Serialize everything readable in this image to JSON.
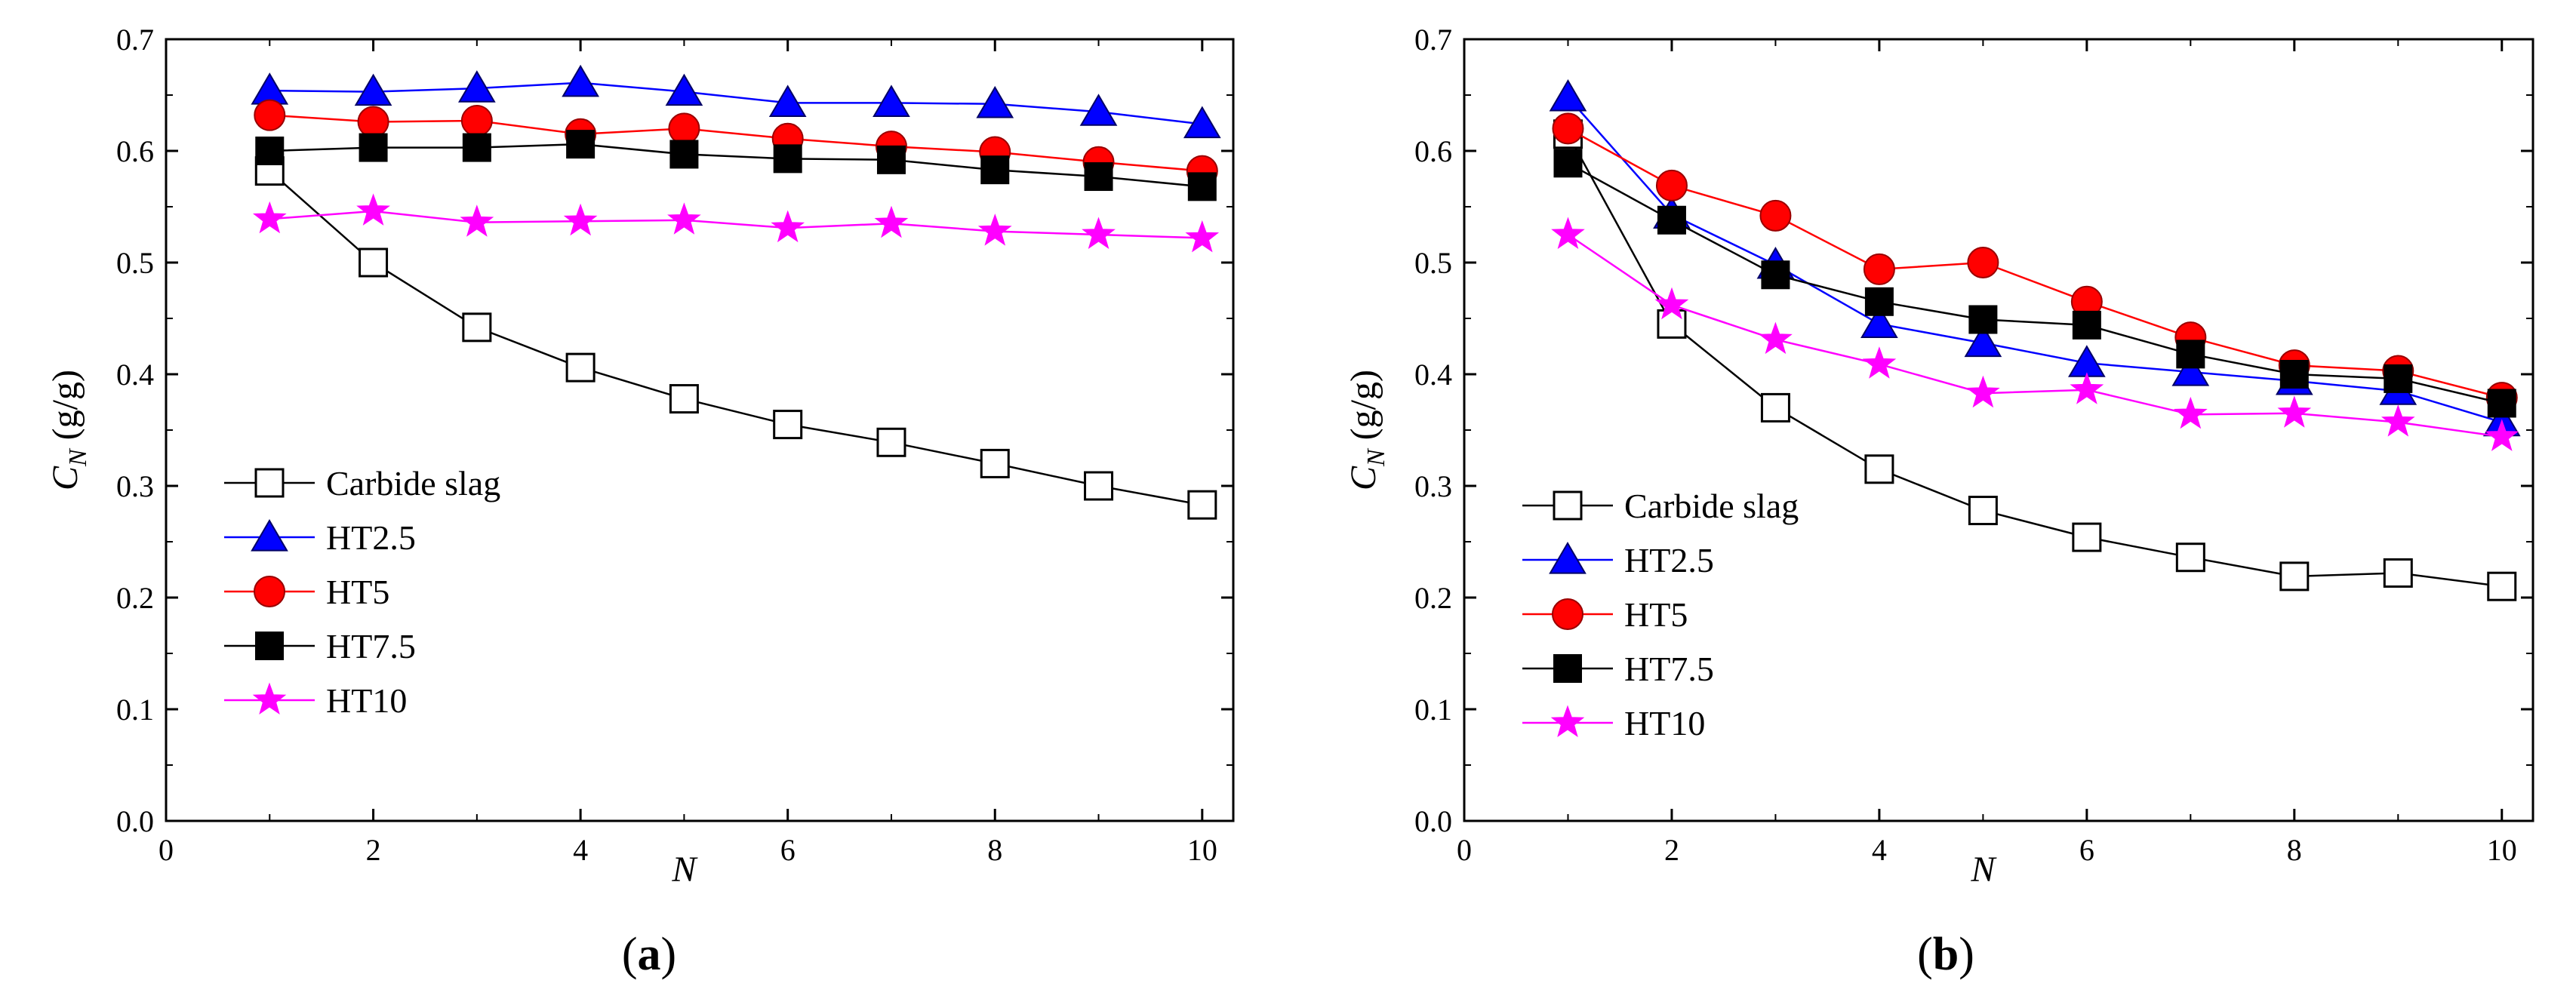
{
  "chart_data": [
    {
      "type": "line",
      "panel_label_open": "(",
      "panel_label_letter": "a",
      "panel_label_close": ")",
      "xlabel": "N",
      "ylabel_main": "C",
      "ylabel_sub": "N",
      "ylabel_unit": " (g/g)",
      "xlim": [
        0,
        10.3
      ],
      "ylim": [
        0,
        0.7
      ],
      "x_ticks": [
        0,
        2,
        4,
        6,
        8,
        10
      ],
      "x_tick_labels": [
        "0",
        "2",
        "4",
        "6",
        "8",
        "10"
      ],
      "y_ticks": [
        0.0,
        0.1,
        0.2,
        0.3,
        0.4,
        0.5,
        0.6,
        0.7
      ],
      "y_tick_labels": [
        "0.0",
        "0.1",
        "0.2",
        "0.3",
        "0.4",
        "0.5",
        "0.6",
        "0.7"
      ],
      "legend_position": "lower-left",
      "x": [
        1,
        2,
        3,
        4,
        5,
        6,
        7,
        8,
        9,
        10
      ],
      "series": [
        {
          "name": "Carbide slag",
          "marker": "open-square",
          "color": "#000000",
          "values": [
            0.582,
            0.5,
            0.442,
            0.406,
            0.378,
            0.355,
            0.339,
            0.32,
            0.3,
            0.283
          ]
        },
        {
          "name": "HT2.5",
          "marker": "triangle",
          "color": "#0000FF",
          "values": [
            0.654,
            0.653,
            0.656,
            0.661,
            0.653,
            0.643,
            0.643,
            0.642,
            0.635,
            0.624
          ]
        },
        {
          "name": "HT5",
          "marker": "circle",
          "color": "#FF0000",
          "values": [
            0.632,
            0.626,
            0.627,
            0.615,
            0.62,
            0.611,
            0.604,
            0.599,
            0.59,
            0.582
          ]
        },
        {
          "name": "HT7.5",
          "marker": "filled-square",
          "color": "#000000",
          "values": [
            0.6,
            0.603,
            0.603,
            0.606,
            0.597,
            0.593,
            0.592,
            0.583,
            0.577,
            0.568
          ]
        },
        {
          "name": "HT10",
          "marker": "star",
          "color": "#FF00FF",
          "values": [
            0.539,
            0.546,
            0.536,
            0.537,
            0.538,
            0.531,
            0.535,
            0.528,
            0.525,
            0.522
          ]
        }
      ]
    },
    {
      "type": "line",
      "panel_label_open": "(",
      "panel_label_letter": "b",
      "panel_label_close": ")",
      "xlabel": "N",
      "ylabel_main": "C",
      "ylabel_sub": "N",
      "ylabel_unit": " (g/g)",
      "xlim": [
        0,
        10.3
      ],
      "ylim": [
        0,
        0.7
      ],
      "x_ticks": [
        0,
        2,
        4,
        6,
        8,
        10
      ],
      "x_tick_labels": [
        "0",
        "2",
        "4",
        "6",
        "8",
        "10"
      ],
      "y_ticks": [
        0.0,
        0.1,
        0.2,
        0.3,
        0.4,
        0.5,
        0.6,
        0.7
      ],
      "y_tick_labels": [
        "0.0",
        "0.1",
        "0.2",
        "0.3",
        "0.4",
        "0.5",
        "0.6",
        "0.7"
      ],
      "legend_position": "lower-left",
      "x": [
        1,
        2,
        3,
        4,
        5,
        6,
        7,
        8,
        9,
        10
      ],
      "series": [
        {
          "name": "Carbide slag",
          "marker": "open-square",
          "color": "#000000",
          "values": [
            0.615,
            0.445,
            0.37,
            0.315,
            0.278,
            0.254,
            0.236,
            0.219,
            0.222,
            0.21
          ]
        },
        {
          "name": "HT2.5",
          "marker": "triangle",
          "color": "#0000FF",
          "values": [
            0.648,
            0.543,
            0.498,
            0.445,
            0.428,
            0.41,
            0.402,
            0.394,
            0.385,
            0.357
          ]
        },
        {
          "name": "HT5",
          "marker": "circle",
          "color": "#FF0000",
          "values": [
            0.62,
            0.569,
            0.542,
            0.494,
            0.5,
            0.465,
            0.433,
            0.408,
            0.403,
            0.379
          ]
        },
        {
          "name": "HT7.5",
          "marker": "filled-square",
          "color": "#000000",
          "values": [
            0.589,
            0.538,
            0.489,
            0.465,
            0.449,
            0.444,
            0.418,
            0.4,
            0.396,
            0.374
          ]
        },
        {
          "name": "HT10",
          "marker": "star",
          "color": "#FF00FF",
          "values": [
            0.525,
            0.462,
            0.431,
            0.409,
            0.383,
            0.386,
            0.364,
            0.365,
            0.357,
            0.344
          ]
        }
      ]
    }
  ]
}
